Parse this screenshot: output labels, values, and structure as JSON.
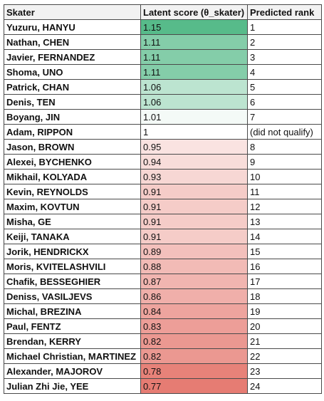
{
  "columns": [
    "Skater",
    "Latent score (θ_skater)",
    "Predicted rank"
  ],
  "colors": {
    "high": "#57bb8a",
    "neutral": "#ffffff",
    "low": "#e67c73"
  },
  "rows": [
    {
      "name": "Yuzuru, HANYU",
      "score": "1.15",
      "rank": "1"
    },
    {
      "name": "Nathan, CHEN",
      "score": "1.11",
      "rank": "2"
    },
    {
      "name": "Javier, FERNANDEZ",
      "score": "1.11",
      "rank": "3"
    },
    {
      "name": "Shoma, UNO",
      "score": "1.11",
      "rank": "4"
    },
    {
      "name": "Patrick, CHAN",
      "score": "1.06",
      "rank": "5"
    },
    {
      "name": "Denis, TEN",
      "score": "1.06",
      "rank": "6"
    },
    {
      "name": "Boyang, JIN",
      "score": "1.01",
      "rank": "7"
    },
    {
      "name": "Adam, RIPPON",
      "score": "1",
      "rank": "(did not qualify)"
    },
    {
      "name": "Jason, BROWN",
      "score": "0.95",
      "rank": "8"
    },
    {
      "name": "Alexei, BYCHENKO",
      "score": "0.94",
      "rank": "9"
    },
    {
      "name": "Mikhail, KOLYADA",
      "score": "0.93",
      "rank": "10"
    },
    {
      "name": "Kevin, REYNOLDS",
      "score": "0.91",
      "rank": "11"
    },
    {
      "name": "Maxim, KOVTUN",
      "score": "0.91",
      "rank": "12"
    },
    {
      "name": "Misha, GE",
      "score": "0.91",
      "rank": "13"
    },
    {
      "name": "Keiji, TANAKA",
      "score": "0.91",
      "rank": "14"
    },
    {
      "name": "Jorik, HENDRICKX",
      "score": "0.89",
      "rank": "15"
    },
    {
      "name": "Moris, KVITELASHVILI",
      "score": "0.88",
      "rank": "16"
    },
    {
      "name": "Chafik, BESSEGHIER",
      "score": "0.87",
      "rank": "17"
    },
    {
      "name": "Deniss, VASILJEVS",
      "score": "0.86",
      "rank": "18"
    },
    {
      "name": "Michal, BREZINA",
      "score": "0.84",
      "rank": "19"
    },
    {
      "name": "Paul, FENTZ",
      "score": "0.83",
      "rank": "20"
    },
    {
      "name": "Brendan, KERRY",
      "score": "0.82",
      "rank": "21"
    },
    {
      "name": "Michael Christian, MARTINEZ",
      "score": "0.82",
      "rank": "22"
    },
    {
      "name": "Alexander, MAJOROV",
      "score": "0.78",
      "rank": "23"
    },
    {
      "name": "Julian Zhi Jie, YEE",
      "score": "0.77",
      "rank": "24"
    }
  ]
}
